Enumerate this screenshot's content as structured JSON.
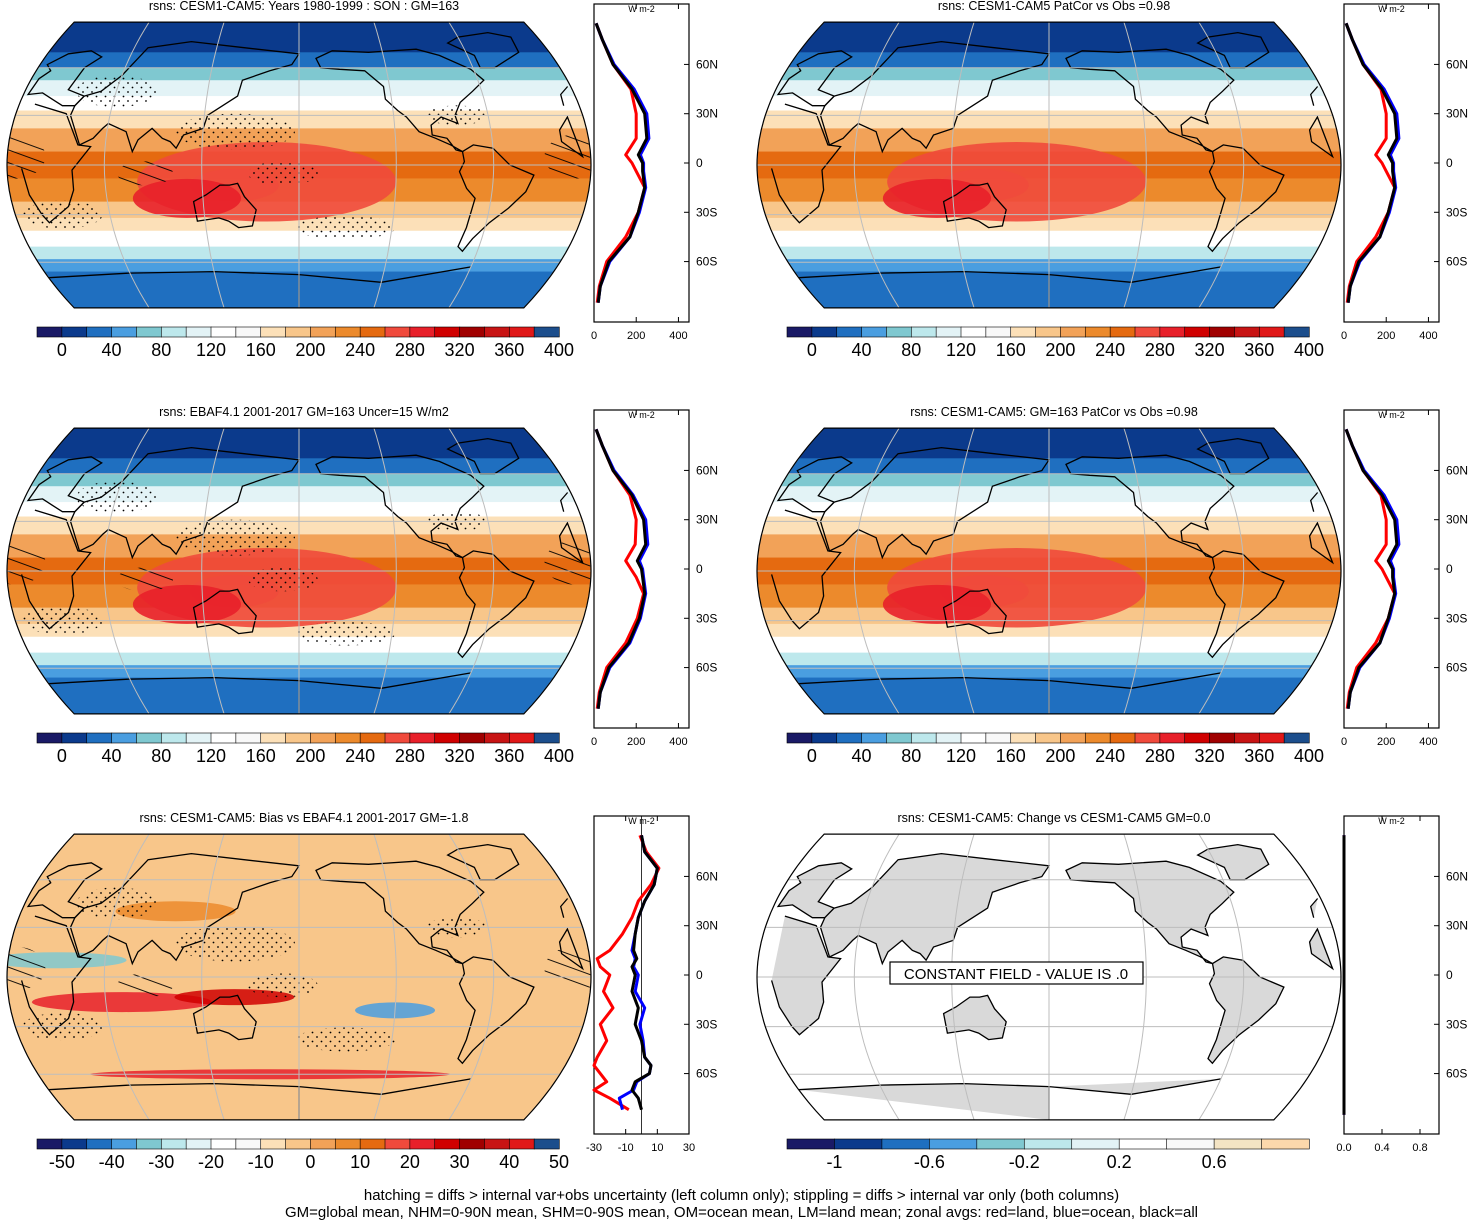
{
  "footer": {
    "line1": "hatching = diffs > internal var+obs uncertainty (left column only); stippling = diffs > internal var only (both columns)",
    "line2": "GM=global mean, NHM=0-90N mean, SHM=0-90S mean, OM=ocean mean, LM=land mean; zonal avgs: red=land, blue=ocean, black=all"
  },
  "colors": {
    "land_line": "#ff0000",
    "ocean_line": "#0000ff",
    "all_line": "#000000",
    "grey_land": "#d9d9d9"
  },
  "chart_data": [
    {
      "type": "heatmap",
      "title": "rsns: CESM1-CAM5: Years 1980-1999 : SON : GM=163",
      "projection": "Robinson",
      "colorbar": {
        "tick_labels": [
          "0",
          "40",
          "80",
          "120",
          "160",
          "200",
          "240",
          "280",
          "320",
          "360",
          "400"
        ],
        "colors": [
          "#1a1a66",
          "#0b3a8c",
          "#1f6fc0",
          "#4a9ee0",
          "#7fc8d0",
          "#bde8ec",
          "#e3f3f6",
          "#ffffff",
          "#f8f8f8",
          "#fce0b8",
          "#f8c68a",
          "#f2a258",
          "#ec8a2c",
          "#e56a10",
          "#f04a3c",
          "#e8202a",
          "#d00000",
          "#a00000",
          "#c81414",
          "#e01818",
          "#1c4e8c"
        ]
      },
      "stippling": true,
      "hatching": true,
      "zonal_avg": {
        "units": "W m-2",
        "xticks": [
          "0",
          "200",
          "400"
        ],
        "xlim": [
          0,
          450
        ],
        "yticks": [
          "60N",
          "30N",
          "0",
          "30S",
          "60S"
        ],
        "lat": [
          85,
          75,
          60,
          45,
          30,
          15,
          5,
          0,
          -5,
          -15,
          -30,
          -45,
          -60,
          -75,
          -85
        ],
        "all": [
          10,
          40,
          90,
          180,
          240,
          250,
          210,
          230,
          230,
          240,
          210,
          170,
          70,
          30,
          20
        ],
        "land": [
          10,
          40,
          90,
          175,
          200,
          200,
          150,
          180,
          200,
          240,
          210,
          150,
          60,
          25,
          15
        ],
        "ocean": [
          10,
          40,
          95,
          190,
          250,
          260,
          220,
          235,
          235,
          245,
          215,
          170,
          75,
          30,
          20
        ]
      }
    },
    {
      "type": "heatmap",
      "title": "rsns: CESM1-CAM5 PatCor vs Obs =0.98",
      "projection": "Robinson",
      "colorbar": {
        "tick_labels": [
          "0",
          "40",
          "80",
          "120",
          "160",
          "200",
          "240",
          "280",
          "320",
          "360",
          "400"
        ],
        "colors": [
          "#1a1a66",
          "#0b3a8c",
          "#1f6fc0",
          "#4a9ee0",
          "#7fc8d0",
          "#bde8ec",
          "#e3f3f6",
          "#ffffff",
          "#f8f8f8",
          "#fce0b8",
          "#f8c68a",
          "#f2a258",
          "#ec8a2c",
          "#e56a10",
          "#f04a3c",
          "#e8202a",
          "#d00000",
          "#a00000",
          "#c81414",
          "#e01818",
          "#1c4e8c"
        ]
      },
      "stippling": false,
      "hatching": false,
      "zonal_avg": {
        "units": "W m-2",
        "xticks": [
          "0",
          "200",
          "400"
        ],
        "xlim": [
          0,
          450
        ],
        "yticks": [
          "60N",
          "30N",
          "0",
          "30S",
          "60S"
        ],
        "lat": [
          85,
          75,
          60,
          45,
          30,
          15,
          5,
          0,
          -5,
          -15,
          -30,
          -45,
          -60,
          -75,
          -85
        ],
        "all": [
          10,
          40,
          90,
          180,
          240,
          250,
          210,
          230,
          230,
          240,
          210,
          170,
          70,
          30,
          20
        ],
        "land": [
          10,
          40,
          90,
          175,
          200,
          200,
          150,
          180,
          200,
          240,
          210,
          150,
          60,
          25,
          15
        ],
        "ocean": [
          10,
          40,
          95,
          190,
          250,
          260,
          220,
          235,
          235,
          245,
          215,
          170,
          75,
          30,
          20
        ]
      }
    },
    {
      "type": "heatmap",
      "title": "rsns: EBAF4.1 2001-2017 GM=163 Uncer=15 W/m2",
      "projection": "Robinson",
      "colorbar": {
        "tick_labels": [
          "0",
          "40",
          "80",
          "120",
          "160",
          "200",
          "240",
          "280",
          "320",
          "360",
          "400"
        ],
        "colors": [
          "#1a1a66",
          "#0b3a8c",
          "#1f6fc0",
          "#4a9ee0",
          "#7fc8d0",
          "#bde8ec",
          "#e3f3f6",
          "#ffffff",
          "#f8f8f8",
          "#fce0b8",
          "#f8c68a",
          "#f2a258",
          "#ec8a2c",
          "#e56a10",
          "#f04a3c",
          "#e8202a",
          "#d00000",
          "#a00000",
          "#c81414",
          "#e01818",
          "#1c4e8c"
        ]
      },
      "stippling": true,
      "hatching": true,
      "zonal_avg": {
        "units": "W m-2",
        "xticks": [
          "0",
          "200",
          "400"
        ],
        "xlim": [
          0,
          450
        ],
        "yticks": [
          "60N",
          "30N",
          "0",
          "30S",
          "60S"
        ],
        "lat": [
          85,
          75,
          60,
          45,
          30,
          15,
          5,
          0,
          -5,
          -15,
          -30,
          -45,
          -60,
          -75,
          -85
        ],
        "all": [
          10,
          40,
          90,
          180,
          235,
          245,
          205,
          225,
          230,
          240,
          215,
          165,
          70,
          30,
          20
        ],
        "land": [
          10,
          40,
          90,
          170,
          200,
          195,
          150,
          175,
          200,
          235,
          205,
          150,
          60,
          25,
          15
        ],
        "ocean": [
          10,
          40,
          95,
          185,
          245,
          255,
          215,
          230,
          235,
          245,
          220,
          170,
          75,
          30,
          20
        ]
      }
    },
    {
      "type": "heatmap",
      "title": "rsns: CESM1-CAM5: GM=163 PatCor vs Obs =0.98",
      "projection": "Robinson",
      "colorbar": {
        "tick_labels": [
          "0",
          "40",
          "80",
          "120",
          "160",
          "200",
          "240",
          "280",
          "320",
          "360",
          "400"
        ],
        "colors": [
          "#1a1a66",
          "#0b3a8c",
          "#1f6fc0",
          "#4a9ee0",
          "#7fc8d0",
          "#bde8ec",
          "#e3f3f6",
          "#ffffff",
          "#f8f8f8",
          "#fce0b8",
          "#f8c68a",
          "#f2a258",
          "#ec8a2c",
          "#e56a10",
          "#f04a3c",
          "#e8202a",
          "#d00000",
          "#a00000",
          "#c81414",
          "#e01818",
          "#1c4e8c"
        ]
      },
      "stippling": false,
      "hatching": false,
      "zonal_avg": {
        "units": "W m-2",
        "xticks": [
          "0",
          "200",
          "400"
        ],
        "xlim": [
          0,
          450
        ],
        "yticks": [
          "60N",
          "30N",
          "0",
          "30S",
          "60S"
        ],
        "lat": [
          85,
          75,
          60,
          45,
          30,
          15,
          5,
          0,
          -5,
          -15,
          -30,
          -45,
          -60,
          -75,
          -85
        ],
        "all": [
          10,
          40,
          90,
          180,
          240,
          250,
          210,
          230,
          230,
          240,
          210,
          170,
          70,
          30,
          20
        ],
        "land": [
          10,
          40,
          90,
          175,
          200,
          200,
          150,
          180,
          200,
          240,
          210,
          150,
          60,
          25,
          15
        ],
        "ocean": [
          10,
          40,
          95,
          190,
          250,
          260,
          220,
          235,
          235,
          245,
          215,
          170,
          75,
          30,
          20
        ]
      }
    },
    {
      "type": "heatmap",
      "title": "rsns: CESM1-CAM5: Bias vs EBAF4.1 2001-2017  GM=-1.8",
      "projection": "Robinson",
      "colorbar": {
        "tick_labels": [
          "-50",
          "-40",
          "-30",
          "-20",
          "-10",
          "0",
          "10",
          "20",
          "30",
          "40",
          "50"
        ],
        "colors": [
          "#1a1a66",
          "#0b3a8c",
          "#1f6fc0",
          "#4a9ee0",
          "#7fc8d0",
          "#bde8ec",
          "#e3f3f6",
          "#ffffff",
          "#f8f8f8",
          "#fce0b8",
          "#f8c68a",
          "#f2a258",
          "#ec8a2c",
          "#e56a10",
          "#f04a3c",
          "#e8202a",
          "#d00000",
          "#a00000",
          "#c81414",
          "#e01818",
          "#1c4e8c"
        ]
      },
      "stippling": true,
      "hatching": true,
      "zonal_avg": {
        "units": "W m-2",
        "xticks": [
          "-30",
          "-10",
          "10",
          "30"
        ],
        "xlim": [
          -30,
          30
        ],
        "yticks": [
          "60N",
          "30N",
          "0",
          "30S",
          "60S"
        ],
        "lat": [
          85,
          75,
          65,
          55,
          45,
          35,
          25,
          15,
          10,
          5,
          0,
          -10,
          -20,
          -30,
          -40,
          -50,
          -55,
          -60,
          -65,
          -70,
          -75,
          -82
        ],
        "all": [
          0,
          2,
          10,
          8,
          2,
          -2,
          -4,
          -5,
          -3,
          -6,
          -4,
          -6,
          -2,
          -4,
          0,
          2,
          6,
          5,
          -4,
          -6,
          -2,
          0
        ],
        "land": [
          -1,
          3,
          11,
          6,
          -2,
          -6,
          -12,
          -20,
          -28,
          -26,
          -20,
          -24,
          -18,
          -26,
          -22,
          -28,
          -30,
          -26,
          -22,
          -30,
          -20,
          -8
        ],
        "ocean": [
          0,
          2,
          10,
          8,
          2,
          -2,
          -4,
          -6,
          -4,
          -5,
          -2,
          -4,
          2,
          -1,
          1,
          2,
          6,
          5,
          -3,
          -5,
          -14,
          -12
        ]
      }
    },
    {
      "type": "heatmap",
      "title": "rsns: CESM1-CAM5: Change vs CESM1-CAM5 GM=0.0",
      "projection": "Robinson",
      "annotation": "CONSTANT FIELD - VALUE IS .0",
      "colorbar": {
        "tick_labels": [
          "-1",
          "-0.6",
          "-0.2",
          "0.2",
          "0.6"
        ],
        "colors": [
          "#1a1a66",
          "#0b3a8c",
          "#1f6fc0",
          "#4a9ee0",
          "#7fc8d0",
          "#bde8ec",
          "#e3f3f6",
          "#ffffff",
          "#f8f8f8",
          "#f4e4c4",
          "#fcd8ac"
        ]
      },
      "stippling": false,
      "hatching": false,
      "zonal_avg": {
        "units": "W m-2",
        "xticks": [
          "0.0",
          "0.4",
          "0.8"
        ],
        "xlim": [
          0,
          1.0
        ],
        "yticks": [
          "60N",
          "30N",
          "0",
          "30S",
          "60S"
        ],
        "lat": [
          85,
          -85
        ],
        "all": [
          0,
          0
        ],
        "land": [
          0,
          0
        ],
        "ocean": [
          0,
          0
        ]
      }
    }
  ]
}
